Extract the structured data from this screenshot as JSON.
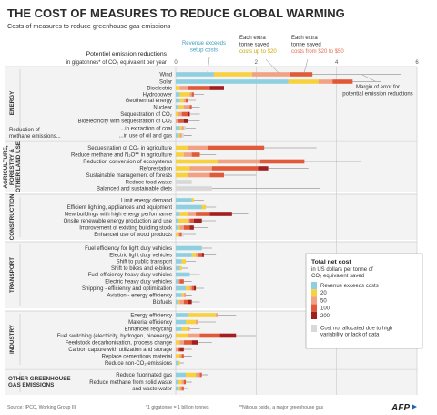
{
  "title": "THE COST OF MEASURES TO REDUCE GLOBAL WARMING",
  "subtitle": "Costs of measures to reduce greenhouse gas emissions",
  "axis_title_1": "Potentiel emission reductions",
  "axis_title_2": "in gigatonnes* of CO₂ equivalent per year",
  "callouts": {
    "revenue": [
      "Revenue exceeds",
      "setup costs"
    ],
    "up_to_20": [
      "Each extra",
      "tonne saved",
      "costs up to $20"
    ],
    "20_to_50": [
      "Each extra",
      "tonne saved",
      "costs from $20 to $50"
    ],
    "margin": [
      "Margin of error for",
      "potential emission reductions"
    ]
  },
  "legend": {
    "title": "Total net cost",
    "subtitle": [
      "in US dollars per tonne of",
      "CO₂ equivalent saved"
    ],
    "items": [
      {
        "label": "Revenue exceeds costs",
        "color": "#8ecfe0"
      },
      {
        "label": "20",
        "color": "#f7d23e"
      },
      {
        "label": "50",
        "color": "#f2a183"
      },
      {
        "label": "100",
        "color": "#e05a3a"
      },
      {
        "label": "200",
        "color": "#a31e1e"
      }
    ],
    "na_label": [
      "Cost not allocated due to high",
      "variability or lack of data"
    ],
    "na_color": "#d8d8d8"
  },
  "footer": {
    "source": "Source: IPCC, Working Group III",
    "note1": "*1 gigatonne = 1 billion tonnes",
    "note2": "**Nitrous oxide, a major greenhouse gas",
    "brand": "AFP"
  },
  "chart_data": {
    "type": "bar",
    "stacked": true,
    "orientation": "horizontal",
    "xlim": [
      0,
      6
    ],
    "xticks": [
      0,
      2,
      4,
      6
    ],
    "units": "GtCO2-eq per year",
    "series_keys": [
      "revenue",
      "c20",
      "c50",
      "c100",
      "c200",
      "na"
    ],
    "groups": [
      {
        "name": "ENERGY",
        "rows": [
          {
            "label": "Wind",
            "segments": [
              0.95,
              0.95,
              0.95,
              0.55,
              0,
              0
            ],
            "err_low": 1.0,
            "err_high": 5.6
          },
          {
            "label": "Solar",
            "segments": [
              2.8,
              0.75,
              0.35,
              0.5,
              0,
              0
            ],
            "err_low": 1.7,
            "err_high": 5.1
          },
          {
            "label": "Bioelectric",
            "segments": [
              0,
              0.1,
              0.2,
              0.55,
              0.35,
              0
            ],
            "err_low": 0.5,
            "err_high": 1.5
          },
          {
            "label": "Hydropower",
            "segments": [
              0.1,
              0.25,
              0.05,
              0.05,
              0,
              0
            ],
            "err_low": 0.2,
            "err_high": 0.7
          },
          {
            "label": "Geothermal energy",
            "segments": [
              0.1,
              0.1,
              0.05,
              0.05,
              0,
              0
            ],
            "err_low": 0.1,
            "err_high": 0.5
          },
          {
            "label": "Nuclear",
            "segments": [
              0.05,
              0.15,
              0.15,
              0.05,
              0,
              0
            ],
            "err_low": 0.2,
            "err_high": 0.6
          },
          {
            "label": "Sequestration of CO₂",
            "segments": [
              0,
              0.05,
              0.1,
              0.15,
              0.05,
              0
            ],
            "err_low": 0.2,
            "err_high": 0.6
          },
          {
            "label": "Bioelectricity with sequestration of CO₂",
            "segments": [
              0,
              0,
              0.05,
              0.15,
              0.1,
              0
            ],
            "err_low": 0.1,
            "err_high": 0.6
          },
          {
            "label": "...in extraction of coal",
            "segments": [
              0.1,
              0.05,
              0.05,
              0,
              0,
              0.05
            ],
            "err_low": 0.05,
            "err_high": 0.5
          },
          {
            "label": "...in use of oil and gas",
            "segments": [
              0.05,
              0.05,
              0.05,
              0,
              0,
              0.05
            ],
            "err_low": 0.05,
            "err_high": 0.4
          }
        ],
        "extra_labels": [
          "Reduction of",
          "methane emissions..."
        ]
      },
      {
        "name": "AGRICULTURE, FORESTRY & OTHER LAND USE",
        "rows": [
          {
            "label": "Sequestration of CO₂ in agriculture",
            "segments": [
              0,
              0.3,
              0.5,
              1.4,
              0,
              0
            ],
            "err_low": 0.5,
            "err_high": 3.5
          },
          {
            "label": "Reduce methane and  N₂O** in agriculture",
            "segments": [
              0,
              0.2,
              0.2,
              0.2,
              0,
              0
            ],
            "err_low": 0.3,
            "err_high": 1.0
          },
          {
            "label": "Reduction conversion of ecosystems",
            "segments": [
              0,
              1.05,
              1.05,
              1.1,
              0,
              0
            ],
            "err_low": 0.5,
            "err_high": 4.6
          },
          {
            "label": "Reforestation",
            "segments": [
              0,
              0.35,
              0.55,
              1.15,
              0.25,
              0
            ],
            "err_low": 0.5,
            "err_high": 3.3
          },
          {
            "label": "Sustainable management of forests",
            "segments": [
              0,
              0.3,
              0.55,
              0.35,
              0,
              0
            ],
            "err_low": 0.3,
            "err_high": 2.0
          },
          {
            "label": "Reduce food waste",
            "segments": [
              0,
              0,
              0,
              0,
              0,
              0.4
            ],
            "err_low": 0.3,
            "err_high": 2.1
          },
          {
            "label": "Balanced and sustainable diets",
            "segments": [
              0,
              0,
              0,
              0,
              0,
              0.9
            ],
            "err_low": 0.6,
            "err_high": 3.6
          }
        ]
      },
      {
        "name": "CONSTRUCTION",
        "rows": [
          {
            "label": "Limit energy demand",
            "segments": [
              0.4,
              0.05,
              0,
              0,
              0,
              0
            ],
            "err_low": 0.3,
            "err_high": 0.7
          },
          {
            "label": "Efficient lighting, appliances and equipment",
            "segments": [
              0.65,
              0.1,
              0,
              0,
              0,
              0
            ],
            "err_low": 0.4,
            "err_high": 1.0
          },
          {
            "label": "New buildings with high energy performance",
            "segments": [
              0.1,
              0.2,
              0.2,
              0.35,
              0.55,
              0
            ],
            "err_low": 0.5,
            "err_high": 1.8
          },
          {
            "label": "Onsite renewable energy production and use",
            "segments": [
              0.05,
              0.25,
              0.05,
              0.1,
              0.2,
              0
            ],
            "err_low": 0.4,
            "err_high": 1.0
          },
          {
            "label": "Improvement of existing building stock",
            "segments": [
              0.05,
              0.05,
              0.1,
              0.15,
              0.1,
              0
            ],
            "err_low": 0.2,
            "err_high": 0.8
          },
          {
            "label": "Enhanced use of wood products",
            "segments": [
              0,
              0.05,
              0.05,
              0.05,
              0,
              0.05
            ],
            "err_low": 0.1,
            "err_high": 0.5
          }
        ]
      },
      {
        "name": "TRANSPORT",
        "rows": [
          {
            "label": "Fuel efficiency for light duty vehicles",
            "segments": [
              0.65,
              0,
              0,
              0,
              0,
              0
            ],
            "err_low": 0.4,
            "err_high": 0.9
          },
          {
            "label": "Electric light duty vehicles",
            "segments": [
              0.4,
              0.1,
              0.05,
              0.1,
              0.05,
              0
            ],
            "err_low": 0.3,
            "err_high": 1.0
          },
          {
            "label": "Shift to public transport",
            "segments": [
              0.15,
              0.1,
              0,
              0,
              0,
              0
            ],
            "err_low": 0.1,
            "err_high": 0.5
          },
          {
            "label": "Shift to bikes and e-bikes",
            "segments": [
              0.1,
              0.05,
              0,
              0,
              0,
              0
            ],
            "err_low": 0.05,
            "err_high": 0.3
          },
          {
            "label": "Fuel efficiency heavy duty vehicles",
            "segments": [
              0.35,
              0,
              0,
              0,
              0,
              0
            ],
            "err_low": 0.2,
            "err_high": 0.6
          },
          {
            "label": "Electric heavy duty vehicles",
            "segments": [
              0.05,
              0,
              0.05,
              0.1,
              0,
              0
            ],
            "err_low": 0.1,
            "err_high": 0.4
          },
          {
            "label": "Shipping - efficiency and optimization",
            "segments": [
              0.25,
              0.1,
              0.05,
              0.05,
              0.05,
              0
            ],
            "err_low": 0.2,
            "err_high": 0.7
          },
          {
            "label": "Aviation - energy efficiency",
            "segments": [
              0.15,
              0.05,
              0.05,
              0,
              0,
              0
            ],
            "err_low": 0.1,
            "err_high": 0.4
          },
          {
            "label": "Biofuels",
            "segments": [
              0.05,
              0.05,
              0.1,
              0.1,
              0.1,
              0
            ],
            "err_low": 0.2,
            "err_high": 0.6
          }
        ]
      },
      {
        "name": "INDUSTRY",
        "rows": [
          {
            "label": "Energy efficiency",
            "segments": [
              0.3,
              0.7,
              0.05,
              0,
              0,
              0
            ],
            "err_low": 0.6,
            "err_high": 1.5
          },
          {
            "label": "Material efficiency",
            "segments": [
              0.25,
              0.25,
              0.05,
              0,
              0,
              0
            ],
            "err_low": 0.3,
            "err_high": 1.0
          },
          {
            "label": "Enhanced recycling",
            "segments": [
              0.15,
              0.15,
              0.05,
              0,
              0,
              0
            ],
            "err_low": 0.2,
            "err_high": 0.6
          },
          {
            "label": "Fuel switching (electricity, hydrogen, bioenergy)",
            "segments": [
              0,
              0.3,
              0.3,
              0.5,
              0.4,
              0
            ],
            "err_low": 0.9,
            "err_high": 2.0
          },
          {
            "label": "Feedstock decarbonisation, process change",
            "segments": [
              0,
              0.1,
              0.1,
              0.2,
              0.15,
              0
            ],
            "err_low": 0.3,
            "err_high": 0.9
          },
          {
            "label": "Carbon capture with utilization and storage",
            "segments": [
              0,
              0,
              0.05,
              0.05,
              0.1,
              0
            ],
            "err_low": 0.1,
            "err_high": 0.4
          },
          {
            "label": "Replace cementious material",
            "segments": [
              0,
              0.1,
              0.05,
              0.05,
              0,
              0
            ],
            "err_low": 0.1,
            "err_high": 0.4
          },
          {
            "label": "Reduce non-CO₂ emissions",
            "segments": [
              0.05,
              0.05,
              0,
              0,
              0,
              0
            ],
            "err_low": 0.05,
            "err_high": 0.2
          }
        ]
      },
      {
        "name": "OTHER GREENHOUSE GAS EMISSIONS",
        "rows": [
          {
            "label": "Reduce fluorinated gas",
            "segments": [
              0.25,
              0.25,
              0.1,
              0.05,
              0,
              0
            ],
            "err_low": 0.5,
            "err_high": 0.8
          },
          {
            "label": "Reduce methane from solid waste",
            "segments": [
              0.05,
              0.1,
              0.05,
              0.05,
              0,
              0
            ],
            "err_low": 0.1,
            "err_high": 0.4
          },
          {
            "label": "and waste water",
            "segments": [
              0.05,
              0.05,
              0.05,
              0.05,
              0,
              0
            ],
            "err_low": 0.1,
            "err_high": 0.3
          }
        ]
      }
    ]
  }
}
